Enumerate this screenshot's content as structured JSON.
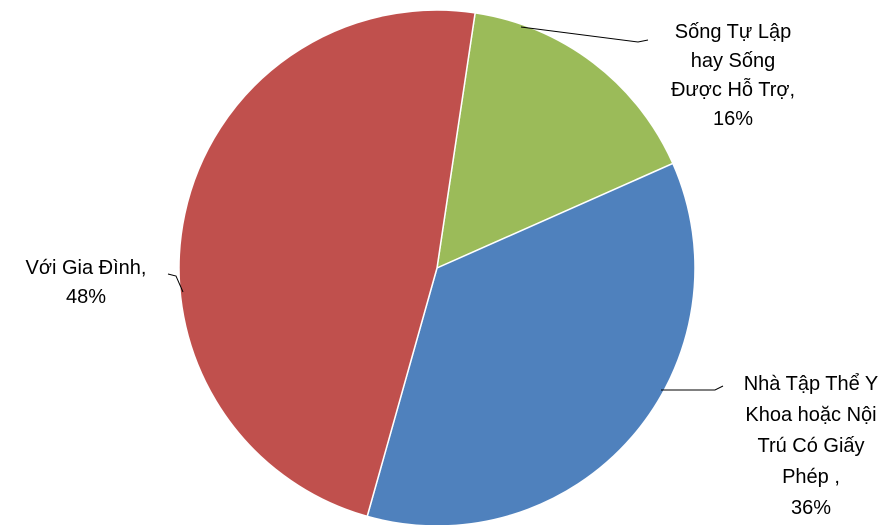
{
  "chart_data": {
    "type": "pie",
    "title": "",
    "slices": [
      {
        "label_lines": [
          "Sống Tự Lập",
          "hay Sống",
          "Được Hỗ Trợ,",
          "16%"
        ],
        "value": 16,
        "color": "#9BBB59"
      },
      {
        "label_lines": [
          "Nhà Tập Thể Y",
          "Khoa hoặc Nội",
          "Trú Có Giấy",
          "Phép ,",
          "36%"
        ],
        "value": 36,
        "color": "#4F81BD"
      },
      {
        "label_lines": [
          "Với Gia Đình,",
          "48%"
        ],
        "value": 48,
        "color": "#C0504D"
      }
    ],
    "legend": "none",
    "data_labels": "outside with leader lines"
  }
}
